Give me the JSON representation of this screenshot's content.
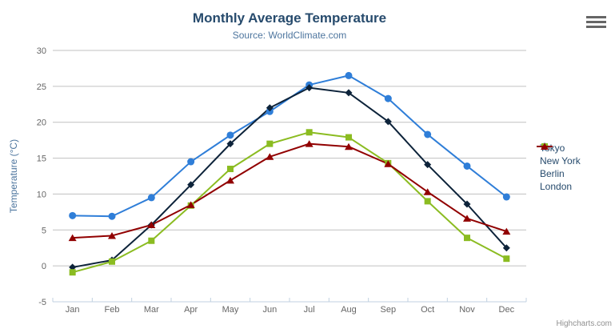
{
  "chart_data": {
    "type": "line",
    "title": "Monthly Average Temperature",
    "subtitle": "Source: WorldClimate.com",
    "xlabel": "",
    "ylabel": "Temperature (°C)",
    "categories": [
      "Jan",
      "Feb",
      "Mar",
      "Apr",
      "May",
      "Jun",
      "Jul",
      "Aug",
      "Sep",
      "Oct",
      "Nov",
      "Dec"
    ],
    "yticks": [
      -5,
      0,
      5,
      10,
      15,
      20,
      25,
      30
    ],
    "ylim": [
      -5,
      30
    ],
    "grid": true,
    "legend_position": "right",
    "series": [
      {
        "name": "Tokyo",
        "color": "#2f7ed8",
        "marker": "circle",
        "values": [
          7.0,
          6.9,
          9.5,
          14.5,
          18.2,
          21.5,
          25.2,
          26.5,
          23.3,
          18.3,
          13.9,
          9.6
        ]
      },
      {
        "name": "New York",
        "color": "#0d233a",
        "marker": "diamond",
        "values": [
          -0.2,
          0.8,
          5.7,
          11.3,
          17.0,
          22.0,
          24.8,
          24.1,
          20.1,
          14.1,
          8.6,
          2.5
        ]
      },
      {
        "name": "Berlin",
        "color": "#8bbc21",
        "marker": "square",
        "values": [
          -0.9,
          0.6,
          3.5,
          8.4,
          13.5,
          17.0,
          18.6,
          17.9,
          14.3,
          9.0,
          3.9,
          1.0
        ]
      },
      {
        "name": "London",
        "color": "#910000",
        "marker": "triangle",
        "values": [
          3.9,
          4.2,
          5.7,
          8.5,
          11.9,
          15.2,
          17.0,
          16.6,
          14.2,
          10.3,
          6.6,
          4.8
        ]
      }
    ]
  },
  "colors": {
    "title": "#274b6d",
    "subtitle": "#4d759e",
    "axis_title": "#4d759e",
    "tick_label": "#666666",
    "grid_line": "#c0c0c0",
    "axis_line": "#c0d0e0",
    "legend_text": "#274b6d"
  },
  "credit": "Highcharts.com",
  "menu": {
    "icon": "hamburger-icon"
  }
}
